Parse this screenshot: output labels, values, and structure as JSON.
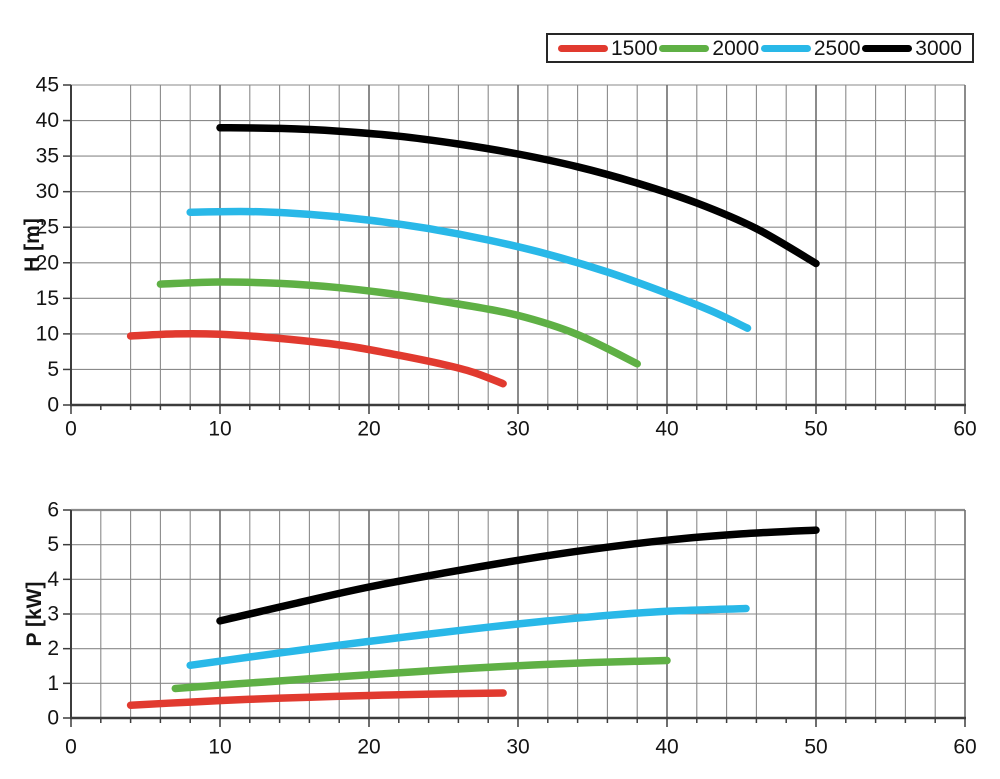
{
  "page": {
    "background": "#ffffff"
  },
  "legend": {
    "position": "top-right",
    "items": [
      {
        "label": "1500",
        "color": "#e13a2f"
      },
      {
        "label": "2000",
        "color": "#5fb045"
      },
      {
        "label": "2500",
        "color": "#29b8e8"
      },
      {
        "label": "3000",
        "color": "#000000"
      }
    ]
  },
  "chart_data": [
    {
      "type": "line",
      "title": "",
      "xlabel": "",
      "ylabel": "H [m]",
      "xlim": [
        0,
        60
      ],
      "ylim": [
        0,
        45
      ],
      "x_ticks": [
        0,
        10,
        20,
        30,
        40,
        50,
        60
      ],
      "x_minor_step": 2,
      "x_missing_minor_gridlines": [
        2
      ],
      "y_ticks": [
        0,
        5,
        10,
        15,
        20,
        25,
        30,
        35,
        40,
        45
      ],
      "grid": true,
      "heavy_top_border": false,
      "legend_position": "top-right",
      "series": [
        {
          "name": "1500",
          "color": "#e13a2f",
          "points": [
            [
              4,
              9.7
            ],
            [
              7,
              10.0
            ],
            [
              10,
              9.95
            ],
            [
              13,
              9.55
            ],
            [
              16,
              8.95
            ],
            [
              19,
              8.15
            ],
            [
              22,
              7.0
            ],
            [
              25,
              5.7
            ],
            [
              27,
              4.6
            ],
            [
              29,
              3.0
            ]
          ]
        },
        {
          "name": "2000",
          "color": "#5fb045",
          "points": [
            [
              6,
              17.0
            ],
            [
              10,
              17.3
            ],
            [
              14,
              17.1
            ],
            [
              18,
              16.5
            ],
            [
              22,
              15.5
            ],
            [
              26,
              14.2
            ],
            [
              30,
              12.6
            ],
            [
              34,
              9.9
            ],
            [
              38,
              5.8
            ]
          ]
        },
        {
          "name": "2500",
          "color": "#29b8e8",
          "points": [
            [
              8,
              27.1
            ],
            [
              12,
              27.2
            ],
            [
              16,
              26.8
            ],
            [
              20,
              26.0
            ],
            [
              24,
              24.8
            ],
            [
              28,
              23.2
            ],
            [
              32,
              21.2
            ],
            [
              36,
              18.7
            ],
            [
              40,
              15.7
            ],
            [
              43,
              13.2
            ],
            [
              45.4,
              10.8
            ]
          ]
        },
        {
          "name": "3000",
          "color": "#000000",
          "points": [
            [
              10,
              39.0
            ],
            [
              14,
              38.9
            ],
            [
              18,
              38.5
            ],
            [
              22,
              37.8
            ],
            [
              26,
              36.7
            ],
            [
              30,
              35.3
            ],
            [
              34,
              33.5
            ],
            [
              38,
              31.2
            ],
            [
              42,
              28.4
            ],
            [
              46,
              24.8
            ],
            [
              50,
              19.9
            ]
          ]
        }
      ]
    },
    {
      "type": "line",
      "title": "",
      "xlabel": "",
      "ylabel": "P [kW]",
      "xlim": [
        0,
        60
      ],
      "ylim": [
        0,
        6
      ],
      "x_ticks": [
        0,
        10,
        20,
        30,
        40,
        50,
        60
      ],
      "x_minor_step": 2,
      "x_missing_minor_gridlines": [
        48
      ],
      "y_ticks": [
        0,
        1,
        2,
        3,
        4,
        5,
        6
      ],
      "grid": true,
      "heavy_top_border": true,
      "legend_position": "top-right",
      "series": [
        {
          "name": "1500",
          "color": "#e13a2f",
          "points": [
            [
              4,
              0.37
            ],
            [
              8,
              0.46
            ],
            [
              12,
              0.54
            ],
            [
              16,
              0.6
            ],
            [
              20,
              0.65
            ],
            [
              24,
              0.69
            ],
            [
              29,
              0.72
            ]
          ]
        },
        {
          "name": "2000",
          "color": "#5fb045",
          "points": [
            [
              7,
              0.85
            ],
            [
              11,
              0.98
            ],
            [
              15,
              1.1
            ],
            [
              19,
              1.22
            ],
            [
              23,
              1.33
            ],
            [
              27,
              1.44
            ],
            [
              31,
              1.53
            ],
            [
              35,
              1.6
            ],
            [
              40,
              1.66
            ]
          ]
        },
        {
          "name": "2500",
          "color": "#29b8e8",
          "points": [
            [
              8,
              1.52
            ],
            [
              12,
              1.76
            ],
            [
              16,
              1.99
            ],
            [
              20,
              2.21
            ],
            [
              24,
              2.42
            ],
            [
              28,
              2.62
            ],
            [
              32,
              2.8
            ],
            [
              36,
              2.96
            ],
            [
              40,
              3.08
            ],
            [
              45.3,
              3.16
            ]
          ]
        },
        {
          "name": "3000",
          "color": "#000000",
          "points": [
            [
              10,
              2.8
            ],
            [
              15,
              3.3
            ],
            [
              20,
              3.78
            ],
            [
              25,
              4.18
            ],
            [
              30,
              4.55
            ],
            [
              35,
              4.87
            ],
            [
              40,
              5.13
            ],
            [
              45,
              5.31
            ],
            [
              50,
              5.42
            ]
          ]
        }
      ]
    }
  ]
}
